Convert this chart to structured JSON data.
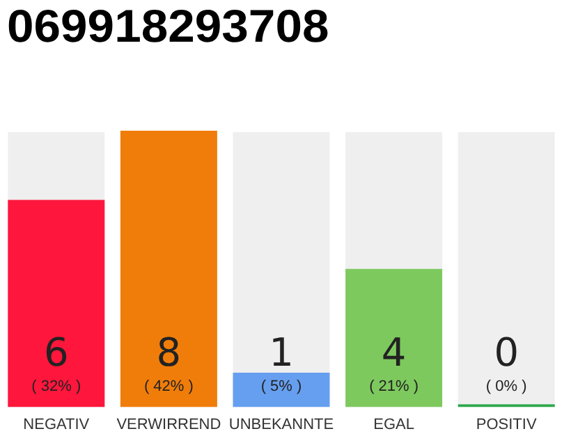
{
  "chart_data": {
    "type": "bar",
    "title": "069918293708",
    "categories": [
      "NEGATIV",
      "VERWIRREND",
      "UNBEKANNTE",
      "EGAL",
      "POSITIV"
    ],
    "values": [
      6,
      8,
      1,
      4,
      0
    ],
    "colors": [
      "#ff163c",
      "#f07d0a",
      "#679ff0",
      "#7dc95e",
      "#2ca84a"
    ],
    "value_labels": [
      "6\n( 32% )",
      "8\n( 42% )",
      "1\n( 5% )",
      "4\n( 21% )",
      "0\n( 0% )"
    ],
    "tick_labels": "x",
    "grid": false,
    "legend": false
  }
}
